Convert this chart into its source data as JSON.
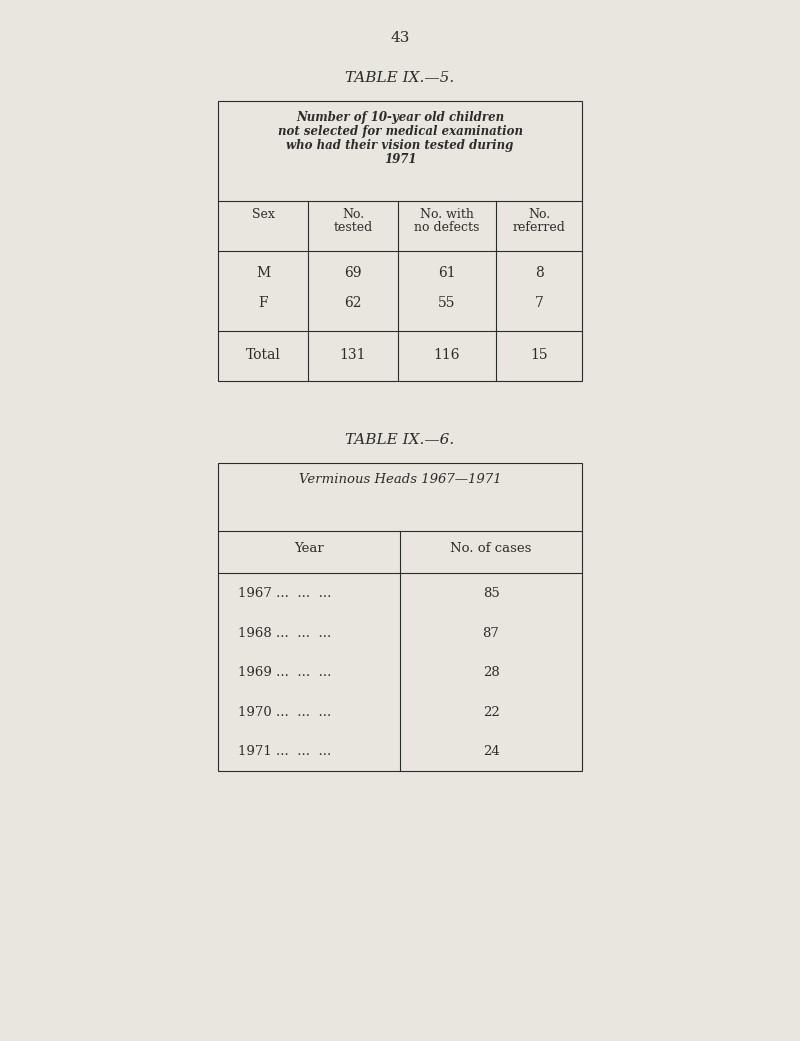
{
  "page_number": "43",
  "bg_color": "#e8e6df",
  "text_color": "#2c2c2c",
  "table1_title": "TABLE IX.—5.",
  "table1_header_line1": "Number of 10-year old children",
  "table1_header_line2": "not selected for medical examination",
  "table1_header_line3": "who had their vision tested during",
  "table1_header_line4": "1971",
  "table1_col_headers": [
    "Sex",
    "No.\ntested",
    "No. with\nno defects",
    "No.\nreferred"
  ],
  "table1_rows": [
    [
      "M",
      "69",
      "61",
      "8"
    ],
    [
      "F",
      "62",
      "55",
      "7"
    ],
    [
      "Total",
      "131",
      "116",
      "15"
    ]
  ],
  "table2_title": "TABLE IX.—6.",
  "table2_header": "Verminous Heads 1967—1971",
  "table2_col_headers": [
    "Year",
    "No. of cases"
  ],
  "table2_rows": [
    [
      "1967 ...  ...  ...",
      "85"
    ],
    [
      "1968 ...  ...  ...",
      "87"
    ],
    [
      "1969 ...  ...  ...",
      "28"
    ],
    [
      "1970 ...  ...  ...",
      "22"
    ],
    [
      "1971 ...  ...  ...",
      "24"
    ]
  ]
}
